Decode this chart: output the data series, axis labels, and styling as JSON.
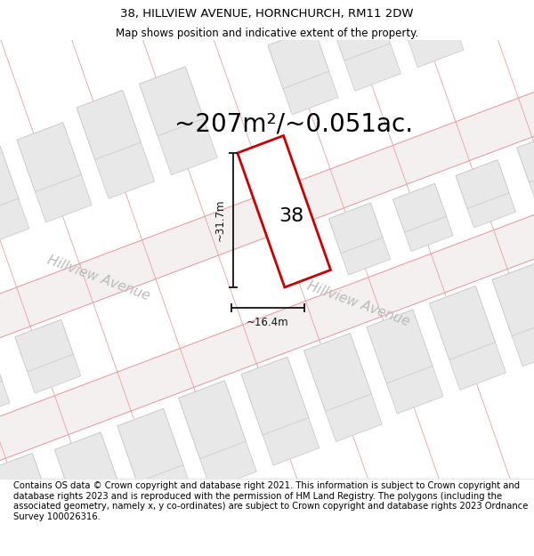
{
  "title_line1": "38, HILLVIEW AVENUE, HORNCHURCH, RM11 2DW",
  "title_line2": "Map shows position and indicative extent of the property.",
  "area_label": "~207m²/~0.051ac.",
  "width_label": "~16.4m",
  "height_label": "~31.7m",
  "property_number": "38",
  "street_label1": "Hillview Avenue",
  "street_label2": "Hillview Avenue",
  "footer_text": "Contains OS data © Crown copyright and database right 2021. This information is subject to Crown copyright and database rights 2023 and is reproduced with the permission of HM Land Registry. The polygons (including the associated geometry, namely x, y co-ordinates) are subject to Crown copyright and database rights 2023 Ordnance Survey 100026316.",
  "bg_color": "#ffffff",
  "road_fill": "#f5f0f0",
  "road_line_color": "#e8a0a0",
  "building_fill": "#e8e8e8",
  "building_edge": "#cccccc",
  "property_fill": "#ffffff",
  "property_edge": "#cc0000",
  "dim_color": "#111111",
  "street_color": "#bbbbbb",
  "title_fontsize": 9.5,
  "subtitle_fontsize": 8.5,
  "area_fontsize": 20,
  "dim_fontsize": 8.5,
  "number_fontsize": 16,
  "street_fontsize": 11,
  "footer_fontsize": 7.2
}
